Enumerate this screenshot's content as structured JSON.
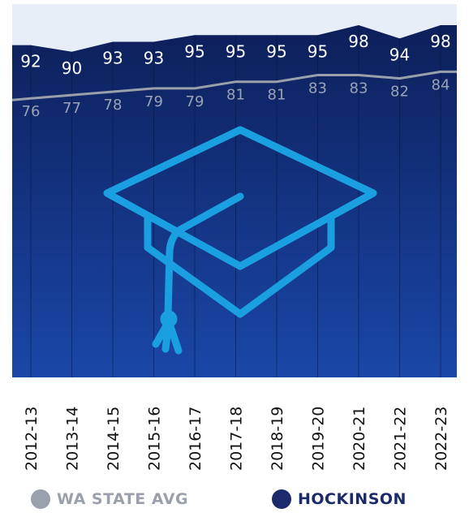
{
  "chart_data": {
    "type": "area",
    "categories": [
      "2012-13",
      "2013-14",
      "2014-15",
      "2015-16",
      "2016-17",
      "2017-18",
      "2018-19",
      "2019-20",
      "2020-21",
      "2021-22",
      "2022-23"
    ],
    "series": [
      {
        "name": "HOCKINSON",
        "values": [
          92,
          90,
          93,
          93,
          95,
          95,
          95,
          95,
          98,
          94,
          98
        ],
        "color": "#1a2a6a"
      },
      {
        "name": "WA STATE AVG",
        "values": [
          76,
          77,
          78,
          79,
          79,
          81,
          81,
          83,
          83,
          82,
          84
        ],
        "color": "#9aa0ab"
      }
    ],
    "gradient_top": "#0d1f5a",
    "gradient_bottom": "#1a47a8",
    "icon_color": "#1aa0e0",
    "icon": "graduation-cap-icon"
  },
  "legend": {
    "state_label": "WA STATE AVG",
    "hockinson_label": "HOCKINSON"
  }
}
